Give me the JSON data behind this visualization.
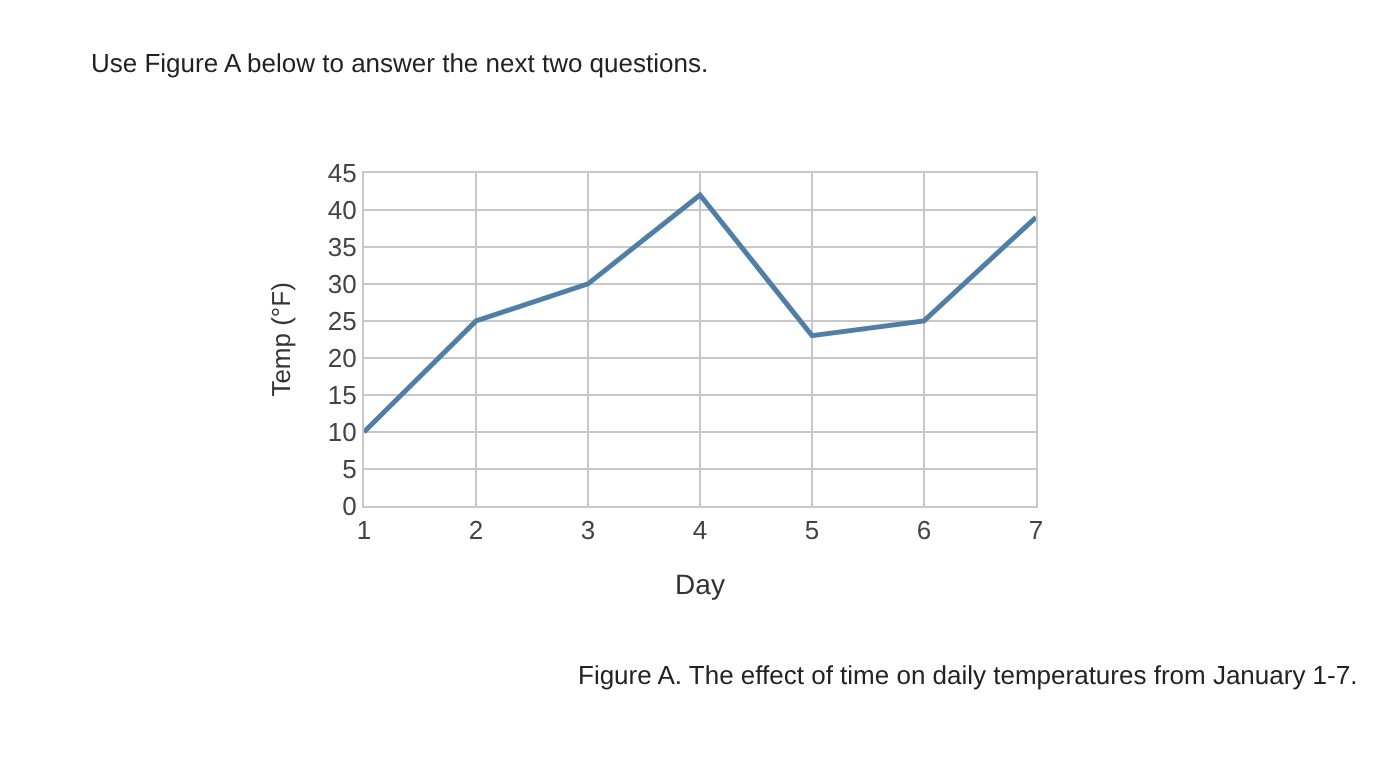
{
  "chart_data": {
    "type": "line",
    "title": "Use Figure A below to answer the next two questions.",
    "xlabel": "Day",
    "ylabel": "Temp (°F)",
    "annotations": [
      "Figure A. The effect of time on daily temperatures from January 1-7."
    ],
    "x": [
      1,
      2,
      3,
      4,
      5,
      6,
      7
    ],
    "series": [
      {
        "color": "#4f7fa6",
        "values": [
          10,
          25,
          30,
          42,
          23,
          25,
          39
        ]
      }
    ],
    "xlim": [
      1,
      7
    ],
    "xticks": [
      1,
      2,
      3,
      4,
      5,
      6,
      7
    ],
    "ylim": [
      0,
      45
    ],
    "yticks": [
      0,
      5,
      10,
      15,
      20,
      25,
      30,
      35,
      40,
      45
    ],
    "grid": true,
    "marker": "none",
    "line_style": "solid"
  }
}
